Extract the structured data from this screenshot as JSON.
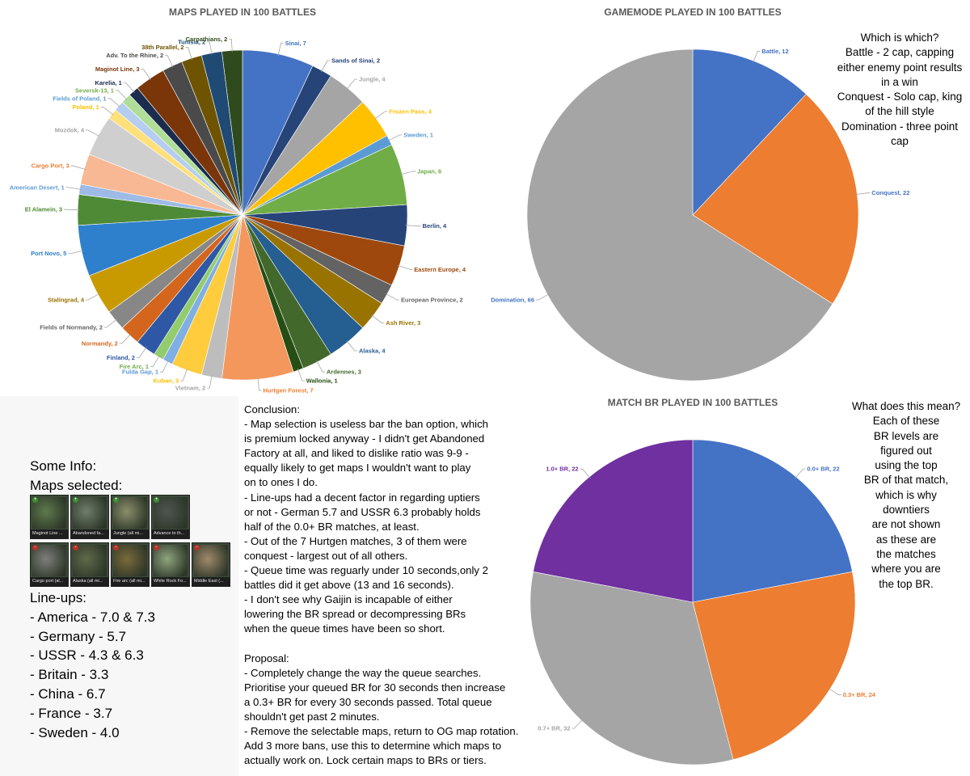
{
  "chart_data": [
    {
      "type": "pie",
      "title": "MAPS PLAYED IN 100 BATTLES",
      "categories": [
        "Sinai",
        "Sands of Sinai",
        "Jungle",
        "Frozen Pass",
        "Sweden",
        "Japan",
        "Berlin",
        "Eastern Europe",
        "European Province",
        "Ash River",
        "Alaska",
        "Ardennes",
        "Wallonia",
        "Hurtgen Forest",
        "Vietnam",
        "Kuban",
        "Fulda Gap",
        "Fire Arc",
        "Finland",
        "Normandy",
        "Fields of Normandy",
        "Stalingrad",
        "Port Novo",
        "El Alamein",
        "American Desert",
        "Cargo Port",
        "Mozdok",
        "Poland",
        "Fields of Poland",
        "Seversk-13",
        "Karelia",
        "Maginot Line",
        "Adv. To the Rhine",
        "38th Parallel",
        "Tunisia",
        "Carpathians"
      ],
      "values": [
        7,
        2,
        4,
        4,
        1,
        6,
        4,
        4,
        2,
        3,
        4,
        3,
        1,
        7,
        2,
        3,
        1,
        1,
        2,
        2,
        2,
        4,
        5,
        3,
        1,
        3,
        4,
        1,
        1,
        1,
        1,
        3,
        2,
        2,
        2,
        2
      ],
      "colors": [
        "#4472c4",
        "#264478",
        "#a5a5a5",
        "#ffc000",
        "#5b9bd5",
        "#70ad47",
        "#264478",
        "#9e480e",
        "#636363",
        "#997300",
        "#255e91",
        "#43682b",
        "#264e14",
        "#f4975c",
        "#bdbdbd",
        "#ffcc3d",
        "#80afe3",
        "#92cc6c",
        "#2e58a6",
        "#d4651d",
        "#878787",
        "#c99a00",
        "#2f80cc",
        "#4f8a36",
        "#9dbbe6",
        "#f8b893",
        "#cfcfcf",
        "#ffe07a",
        "#b4cdf0",
        "#b0dd97",
        "#1b2d4e",
        "#7a3509",
        "#4a4a4a",
        "#6e5400",
        "#1f4a73",
        "#2f4a1d"
      ],
      "label_colors": [
        "#4472c4",
        "#264478",
        "#a5a5a5",
        "#ffc000",
        "#5b9bd5",
        "#70ad47",
        "#264478",
        "#9e480e",
        "#636363",
        "#997300",
        "#255e91",
        "#43682b",
        "#264e14",
        "#ed7d31",
        "#a5a5a5",
        "#ffc000",
        "#5b9bd5",
        "#70ad47",
        "#2e58a6",
        "#d4651d",
        "#636363",
        "#997300",
        "#2f80cc",
        "#4f8a36",
        "#5b9bd5",
        "#ed7d31",
        "#a5a5a5",
        "#ffc000",
        "#5b9bd5",
        "#70ad47",
        "#1b2d4e",
        "#7a3509",
        "#4a4a4a",
        "#6e5400",
        "#1f4a73",
        "#2f4a1d"
      ]
    },
    {
      "type": "pie",
      "title": "GAMEMODE PLAYED IN 100 BATTLES",
      "categories": [
        "Battle",
        "Conquest",
        "Domination"
      ],
      "values": [
        12,
        22,
        66
      ],
      "colors": [
        "#4472c4",
        "#ed7d31",
        "#a5a5a5"
      ],
      "label_colors": [
        "#4472c4",
        "#4472c4",
        "#4472c4"
      ]
    },
    {
      "type": "pie",
      "title": "MATCH BR PLAYED IN 100 BATTLES",
      "categories": [
        "0.0+ BR",
        "0.3+ BR",
        "0.7+ BR",
        "1.0+ BR"
      ],
      "values": [
        22,
        24,
        32,
        22
      ],
      "colors": [
        "#4472c4",
        "#ed7d31",
        "#a5a5a5",
        "#7030a0"
      ],
      "label_colors": [
        "#4472c4",
        "#ed7d31",
        "#a5a5a5",
        "#7030a0"
      ]
    }
  ],
  "sidebar_gamemode": "Which is which?\nBattle - 2 cap, capping either enemy point results in a win\nConquest - Solo cap, king of the hill style\nDomination - three point cap",
  "sidebar_br": "What does this mean?\nEach of these\nBR levels are\nfigured out\nusing the top\nBR of that match,\nwhich is why\ndowntiers\nare not shown\nas these are\nthe matches\nwhere you are\nthe top BR.",
  "info": {
    "heading": "Some Info:",
    "maps_heading": "Maps selected:",
    "selected_maps": [
      {
        "caption": "Maginot Line ...",
        "mark": "+",
        "tint": "#5e7a4c"
      },
      {
        "caption": "Abandoned fa...",
        "mark": "+",
        "tint": "#6f7d6a"
      },
      {
        "caption": "Jungle (all mi...",
        "mark": "+",
        "tint": "#8a8f6a"
      },
      {
        "caption": "Advance to th...",
        "mark": "+",
        "tint": "#4e5550"
      },
      {
        "caption": "Cargo port (al...",
        "mark": "-",
        "tint": "#7d7f7a"
      },
      {
        "caption": "Alaska (all mi...",
        "mark": "-",
        "tint": "#5f6a4a"
      },
      {
        "caption": "Fire arc (all mi...",
        "mark": "-",
        "tint": "#7a6a3a"
      },
      {
        "caption": "White Rock Fo...",
        "mark": "-",
        "tint": "#8fa57e"
      },
      {
        "caption": "Middle East (...",
        "mark": "-",
        "tint": "#a08a6a"
      }
    ],
    "lineups_heading": "Line-ups:",
    "lineups": [
      "- America - 7.0 & 7.3",
      "- Germany - 5.7",
      "- USSR - 4.3 & 6.3",
      "- Britain - 3.3",
      "- China - 6.7",
      "- France - 3.7",
      "- Sweden - 4.0"
    ]
  },
  "conclusion": {
    "heading": "Conclusion:",
    "lines": [
      "- Map selection is useless bar the ban option, which",
      "is premium locked anyway - I didn't get Abandoned",
      "Factory at all, and liked to dislike ratio was 9-9 -",
      "equally likely to get maps I wouldn't want to play",
      "on to ones I do.",
      "- Line-ups had a decent factor in regarding uptiers",
      "or not - German 5.7 and USSR 6.3 probably holds",
      "half of the 0.0+ BR matches, at least.",
      "- Out of the 7 Hurtgen matches, 3 of them were",
      "conquest - largest out of all others.",
      "- Queue time was reguarly under 10 seconds,only 2",
      "battles did it get above (13 and 16 seconds).",
      "- I don't see why Gaijin is incapable of either",
      "lowering the BR spread or decompressing BRs",
      "when the queue times have been so short."
    ]
  },
  "proposal": {
    "heading": "Proposal:",
    "lines": [
      "- Completely change the way the queue searches.",
      "Prioritise your queued BR for 30 seconds then increase",
      "a 0.3+ BR for every 30 seconds passed. Total queue",
      "shouldn't get past 2 minutes.",
      "- Remove the selectable maps, return to OG map rotation.",
      "Add 3 more bans, use this to determine which maps to",
      "actually work on. Lock certain maps to BRs or tiers."
    ]
  }
}
